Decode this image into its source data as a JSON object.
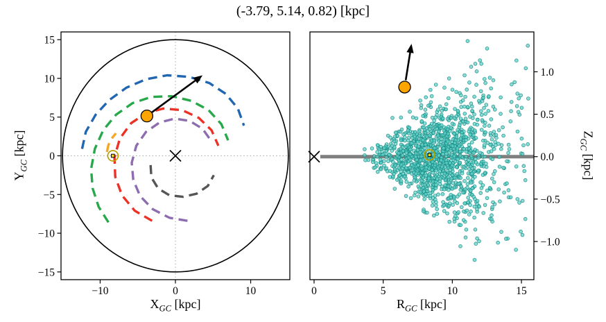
{
  "title": "(-3.79, 5.14, 0.82) [kpc]",
  "chart_data": [
    {
      "type": "scatter",
      "name": "galactic-plane-view",
      "xlabel": {
        "pre": "X",
        "sub": "GC",
        "post": " [kpc]"
      },
      "ylabel": {
        "pre": "Y",
        "sub": "GC",
        "post": " [kpc]"
      },
      "xlim": [
        -15.2,
        15.2
      ],
      "ylim": [
        -16,
        16
      ],
      "xticks": [
        {
          "v": -10,
          "label": "−10"
        },
        {
          "v": 0,
          "label": "0"
        },
        {
          "v": 10,
          "label": "10"
        }
      ],
      "yticks": [
        {
          "v": -15,
          "label": "−15"
        },
        {
          "v": -10,
          "label": "−10"
        },
        {
          "v": -5,
          "label": "−5"
        },
        {
          "v": 0,
          "label": "0"
        },
        {
          "v": 5,
          "label": "5"
        },
        {
          "v": 10,
          "label": "10"
        },
        {
          "v": 15,
          "label": "15"
        }
      ],
      "crosshair": {
        "x": 0,
        "y": 0,
        "color": "#a6a6a6"
      },
      "solar_circle": {
        "cx": 0,
        "cy": 0,
        "r": 15,
        "color": "#000000"
      },
      "spiral_arms": [
        {
          "name": "blue",
          "color": "#2166b0",
          "points": [
            [
              -12.4,
              0.9
            ],
            [
              -11.9,
              3.1
            ],
            [
              -10.6,
              5.3
            ],
            [
              -8.8,
              7.2
            ],
            [
              -6.5,
              8.8
            ],
            [
              -3.9,
              9.9
            ],
            [
              -1.1,
              10.4
            ],
            [
              1.8,
              10.2
            ],
            [
              4.5,
              9.4
            ],
            [
              6.7,
              8.0
            ],
            [
              8.3,
              6.1
            ],
            [
              9.1,
              3.9
            ]
          ]
        },
        {
          "name": "green",
          "color": "#27a84a",
          "points": [
            [
              -8.9,
              -8.6
            ],
            [
              -10.2,
              -6.6
            ],
            [
              -11.0,
              -4.2
            ],
            [
              -11.2,
              -1.7
            ],
            [
              -10.7,
              0.9
            ],
            [
              -9.6,
              3.3
            ],
            [
              -7.9,
              5.3
            ],
            [
              -5.7,
              6.8
            ],
            [
              -3.2,
              7.6
            ],
            [
              -0.5,
              7.7
            ],
            [
              2.1,
              7.1
            ],
            [
              4.4,
              5.9
            ],
            [
              6.1,
              4.1
            ],
            [
              7.0,
              2.0
            ]
          ]
        },
        {
          "name": "red",
          "color": "#ed3124",
          "points": [
            [
              -3.1,
              -8.4
            ],
            [
              -5.4,
              -7.1
            ],
            [
              -7.1,
              -5.1
            ],
            [
              -8.0,
              -2.7
            ],
            [
              -8.1,
              -0.2
            ],
            [
              -7.4,
              2.2
            ],
            [
              -5.9,
              4.2
            ],
            [
              -3.9,
              5.5
            ],
            [
              -1.6,
              6.1
            ],
            [
              0.9,
              5.9
            ],
            [
              3.1,
              4.9
            ],
            [
              4.8,
              3.3
            ],
            [
              5.7,
              1.3
            ]
          ]
        },
        {
          "name": "purple",
          "color": "#8d6cb0",
          "points": [
            [
              1.6,
              -8.4
            ],
            [
              -0.8,
              -8.0
            ],
            [
              -3.0,
              -6.9
            ],
            [
              -4.7,
              -5.2
            ],
            [
              -5.6,
              -3.1
            ],
            [
              -5.8,
              -0.9
            ],
            [
              -5.2,
              1.3
            ],
            [
              -3.9,
              3.1
            ],
            [
              -2.1,
              4.3
            ],
            [
              -0.1,
              4.8
            ],
            [
              1.9,
              4.5
            ],
            [
              3.6,
              3.5
            ],
            [
              4.7,
              2.0
            ]
          ]
        },
        {
          "name": "gray",
          "color": "#555555",
          "points": [
            [
              -3.3,
              -1.2
            ],
            [
              -3.2,
              -2.8
            ],
            [
              -2.3,
              -4.2
            ],
            [
              -0.8,
              -5.1
            ],
            [
              1.0,
              -5.3
            ],
            [
              2.8,
              -4.9
            ],
            [
              4.3,
              -3.9
            ],
            [
              5.1,
              -2.5
            ]
          ]
        },
        {
          "name": "orange",
          "color": "#f5a623",
          "points": [
            [
              -9.1,
              0.5
            ],
            [
              -8.9,
              1.4
            ],
            [
              -8.5,
              2.2
            ],
            [
              -7.9,
              2.9
            ]
          ]
        }
      ],
      "markers": {
        "galactic_center": {
          "x": 0,
          "y": 0,
          "symbol": "x",
          "color": "#000000"
        },
        "sun": {
          "x": -8.3,
          "y": 0,
          "symbol": "circle-dot",
          "color": "#b8a100"
        },
        "cluster": {
          "x": -3.79,
          "y": 5.14,
          "symbol": "circle",
          "color": "#ffa500"
        },
        "velocity_arrow": {
          "from": [
            -3.79,
            5.14
          ],
          "to": [
            3.6,
            10.4
          ],
          "color": "#000000"
        }
      }
    },
    {
      "type": "scatter",
      "name": "radial-vertical-view",
      "xlabel": {
        "pre": "R",
        "sub": "GC",
        "post": " [kpc]"
      },
      "ylabel": {
        "pre": "Z",
        "sub": "GC",
        "post": " [kpc]"
      },
      "xlim": [
        -0.3,
        15.9
      ],
      "ylim": [
        -1.45,
        1.47
      ],
      "xticks": [
        {
          "v": 0,
          "label": "0"
        },
        {
          "v": 5,
          "label": "5"
        },
        {
          "v": 10,
          "label": "10"
        },
        {
          "v": 15,
          "label": "15"
        }
      ],
      "yticks": [
        {
          "v": -1.0,
          "label": "−1.0"
        },
        {
          "v": -0.5,
          "label": "−0.5"
        },
        {
          "v": 0,
          "label": "0.0"
        },
        {
          "v": 0.5,
          "label": "0.5"
        },
        {
          "v": 1.0,
          "label": "1.0"
        }
      ],
      "midplane_line": {
        "z": 0,
        "r_start": 0.45,
        "r_end": 15.9,
        "color": "#7f7f7f"
      },
      "point_style": {
        "fill": "#5fd0c9",
        "edge": "#12887f",
        "opacity": 0.72
      },
      "points_model": {
        "description": "field stars scattered about the Galactic mid-plane; dense core near R≈8–9 kpc, |Z| spread grows with R",
        "seed": 20240613,
        "core": {
          "n": 1250,
          "r_mean": 8.9,
          "r_sigma": 2.05,
          "r_min": 3.6,
          "r_max": 15.5,
          "z_sigma_base": 0.05,
          "z_sigma_slope": 0.048,
          "z_max": 1.42
        },
        "outer": {
          "n": 110,
          "r_min": 10.5,
          "r_max": 15.5,
          "z_sigma": 0.62,
          "z_max": 1.42
        }
      },
      "markers": {
        "galactic_center": {
          "x": 0,
          "y": 0,
          "symbol": "x",
          "color": "#000000"
        },
        "sun": {
          "x": 8.35,
          "y": 0.02,
          "symbol": "circle-dot",
          "color": "#b8a100"
        },
        "cluster": {
          "x": 6.55,
          "y": 0.82,
          "symbol": "circle",
          "color": "#ffa500"
        },
        "velocity_arrow": {
          "from": [
            6.55,
            0.82
          ],
          "to": [
            7.05,
            1.33
          ],
          "color": "#000000"
        }
      }
    }
  ]
}
